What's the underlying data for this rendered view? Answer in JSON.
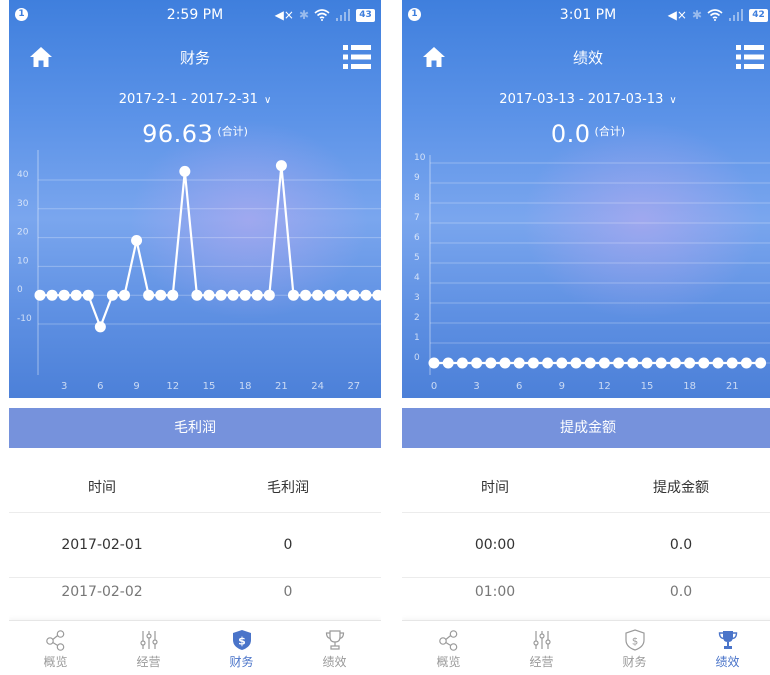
{
  "colors": {
    "accent": "#4a74c9",
    "header_band": "#7692dc",
    "hero_top": "#3f7fdd"
  },
  "tabs": [
    {
      "icon": "share-nodes-icon",
      "label": "概览"
    },
    {
      "icon": "sliders-icon",
      "label": "经营"
    },
    {
      "icon": "dollar-shield-icon",
      "label": "财务"
    },
    {
      "icon": "trophy-icon",
      "label": "绩效"
    }
  ],
  "screens": [
    {
      "status": {
        "badge": "1",
        "time": "2:59 PM",
        "battery": "43"
      },
      "nav": {
        "title": "财务",
        "left_icon": "home-icon",
        "right_icon": "list-menu-icon"
      },
      "date_range": "2017-2-1 - 2017-2-31",
      "total": {
        "value": "96.63",
        "unit": "(合计)"
      },
      "section_title": "毛利润",
      "table": {
        "headers": [
          "时间",
          "毛利润"
        ],
        "rows": [
          [
            "2017-02-01",
            "0"
          ],
          [
            "2017-02-02",
            "0"
          ]
        ]
      },
      "active_tab": 2,
      "chart_data": {
        "type": "line",
        "ylim": [
          -10,
          40
        ],
        "y_ticks": [
          -10,
          0,
          10,
          20,
          30,
          40
        ],
        "x_tick_labels": [
          "3",
          "6",
          "9",
          "12",
          "15",
          "18",
          "21",
          "24",
          "27"
        ],
        "x": [
          1,
          2,
          3,
          4,
          5,
          6,
          7,
          8,
          9,
          10,
          11,
          12,
          13,
          14,
          15,
          16,
          17,
          18,
          19,
          20,
          21,
          22,
          23,
          24,
          25,
          26,
          27,
          28,
          29
        ],
        "values": [
          0,
          0,
          0,
          0,
          0,
          -11,
          0,
          0,
          19,
          0,
          0,
          0,
          43,
          0,
          0,
          0,
          0,
          0,
          0,
          0,
          45,
          0,
          0,
          0,
          0,
          0,
          0,
          0,
          0
        ]
      }
    },
    {
      "status": {
        "badge": "1",
        "time": "3:01 PM",
        "battery": "42"
      },
      "nav": {
        "title": "绩效",
        "left_icon": "home-icon",
        "right_icon": "list-menu-icon"
      },
      "date_range": "2017-03-13 - 2017-03-13",
      "total": {
        "value": "0.0",
        "unit": "(合计)"
      },
      "section_title": "提成金额",
      "table": {
        "headers": [
          "时间",
          "提成金额"
        ],
        "rows": [
          [
            "00:00",
            "0.0"
          ],
          [
            "01:00",
            "0.0"
          ]
        ]
      },
      "active_tab": 3,
      "chart_data": {
        "type": "line",
        "ylim": [
          0,
          10
        ],
        "y_ticks": [
          0,
          1,
          2,
          3,
          4,
          5,
          6,
          7,
          8,
          9,
          10
        ],
        "x_tick_labels": [
          "0",
          "3",
          "6",
          "9",
          "12",
          "15",
          "18",
          "21"
        ],
        "x": [
          0,
          1,
          2,
          3,
          4,
          5,
          6,
          7,
          8,
          9,
          10,
          11,
          12,
          13,
          14,
          15,
          16,
          17,
          18,
          19,
          20,
          21,
          22,
          23
        ],
        "values": [
          0,
          0,
          0,
          0,
          0,
          0,
          0,
          0,
          0,
          0,
          0,
          0,
          0,
          0,
          0,
          0,
          0,
          0,
          0,
          0,
          0,
          0,
          0,
          0
        ]
      }
    }
  ]
}
